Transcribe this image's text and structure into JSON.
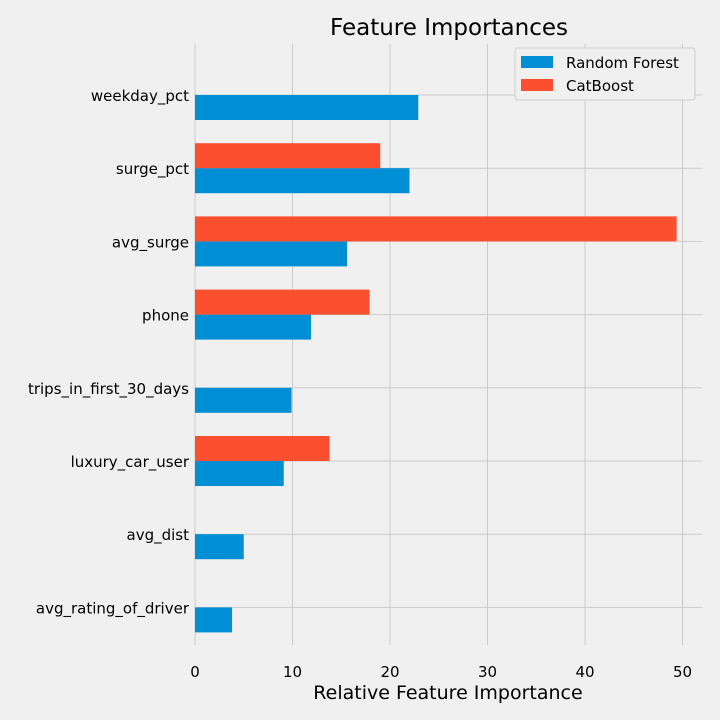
{
  "chart_data": {
    "type": "bar",
    "orientation": "horizontal",
    "title": "Feature Importances",
    "xlabel": "Relative Feature Importance",
    "ylabel": "",
    "xlim": [
      0,
      52
    ],
    "xticks": [
      0,
      10,
      20,
      30,
      40,
      50
    ],
    "grid": true,
    "legend_position": "top-right",
    "categories": [
      "weekday_pct",
      "surge_pct",
      "avg_surge",
      "phone",
      "trips_in_first_30_days",
      "luxury_car_user",
      "avg_dist",
      "avg_rating_of_driver"
    ],
    "series": [
      {
        "name": "Random Forest",
        "color": "#008fd5",
        "values": [
          22.9,
          22.0,
          15.6,
          11.9,
          9.9,
          9.1,
          5.0,
          3.8
        ]
      },
      {
        "name": "CatBoost",
        "color": "#fc4f30",
        "values": [
          0,
          19.0,
          49.4,
          17.9,
          0,
          13.8,
          0,
          0
        ]
      }
    ]
  }
}
